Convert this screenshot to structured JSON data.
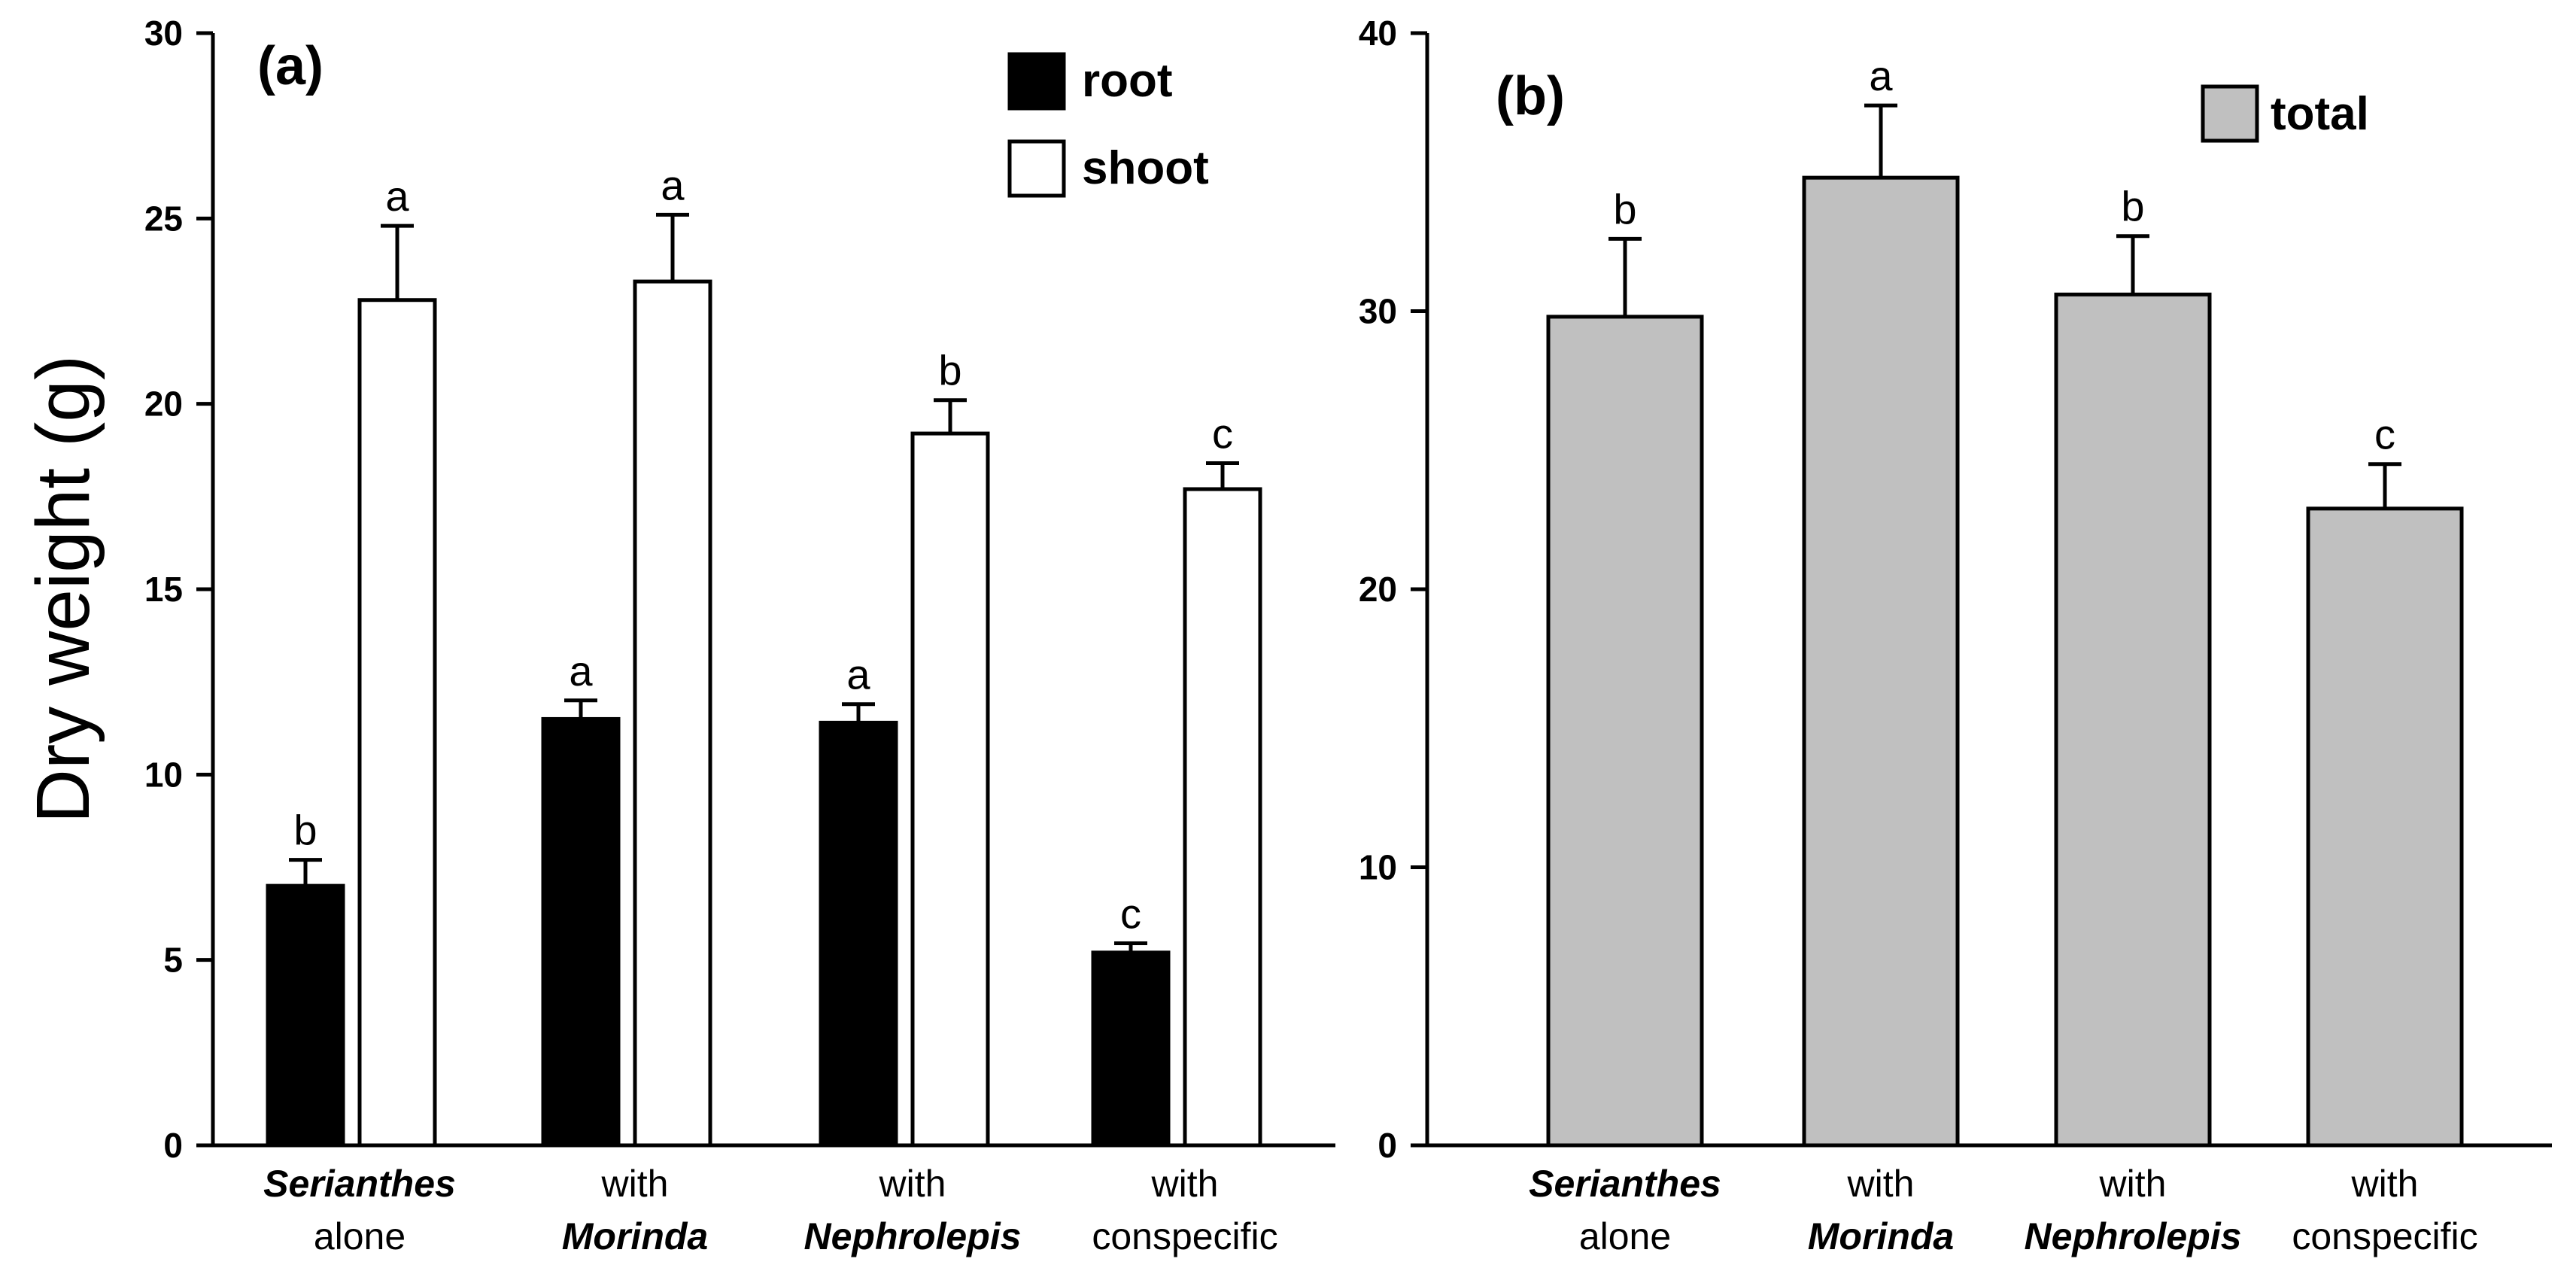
{
  "chart_data": [
    {
      "type": "bar",
      "panel_label": "(a)",
      "ylabel": "Dry weight (g)",
      "xlabel": "",
      "ylim": [
        0,
        30
      ],
      "yticks": [
        "0",
        "5",
        "10",
        "15",
        "20",
        "25",
        "30"
      ],
      "categories": [
        {
          "line1": "Serianthes",
          "line1_italic": true,
          "line2": "alone",
          "line2_italic": false
        },
        {
          "line1": "with",
          "line1_italic": false,
          "line2": "Morinda",
          "line2_italic": true
        },
        {
          "line1": "with",
          "line1_italic": false,
          "line2": "Nephrolepis",
          "line2_italic": true
        },
        {
          "line1": "with",
          "line1_italic": false,
          "line2": "conspecific",
          "line2_italic": false
        }
      ],
      "series": [
        {
          "name": "root",
          "color": "#000000",
          "values": [
            7.0,
            11.5,
            11.4,
            5.2
          ],
          "errors": [
            0.7,
            0.5,
            0.5,
            0.25
          ],
          "letters": [
            "b",
            "a",
            "a",
            "c"
          ]
        },
        {
          "name": "shoot",
          "color": "#ffffff",
          "values": [
            22.8,
            23.3,
            19.2,
            17.7
          ],
          "errors": [
            2.0,
            1.8,
            0.9,
            0.7
          ],
          "letters": [
            "a",
            "a",
            "b",
            "c"
          ]
        }
      ],
      "legend_position": "top-right"
    },
    {
      "type": "bar",
      "panel_label": "(b)",
      "ylabel": "",
      "xlabel": "",
      "ylim": [
        0,
        40
      ],
      "yticks": [
        "0",
        "10",
        "20",
        "30",
        "40"
      ],
      "categories": [
        {
          "line1": "Serianthes",
          "line1_italic": true,
          "line2": "alone",
          "line2_italic": false
        },
        {
          "line1": "with",
          "line1_italic": false,
          "line2": "Morinda",
          "line2_italic": true
        },
        {
          "line1": "with",
          "line1_italic": false,
          "line2": "Nephrolepis",
          "line2_italic": true
        },
        {
          "line1": "with",
          "line1_italic": false,
          "line2": "conspecific",
          "line2_italic": false
        }
      ],
      "series": [
        {
          "name": "total",
          "color": "#c0c0c0",
          "values": [
            29.8,
            34.8,
            30.6,
            22.9
          ],
          "errors": [
            2.8,
            2.6,
            2.1,
            1.6
          ],
          "letters": [
            "b",
            "a",
            "b",
            "c"
          ]
        }
      ],
      "legend_position": "top-right"
    }
  ]
}
